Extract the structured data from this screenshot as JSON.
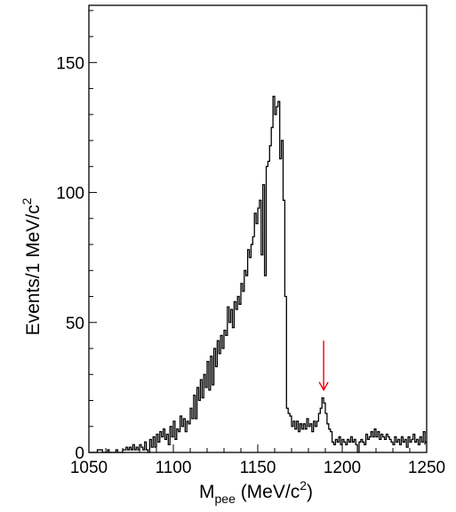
{
  "chart_data": {
    "type": "histogram",
    "bin_width": 1,
    "xlim": [
      1050,
      1250
    ],
    "ylim": [
      0,
      172
    ],
    "grid": false,
    "legend": "none",
    "x_ticks": [
      "1050",
      "1100",
      "1150",
      "1200",
      "1250"
    ],
    "y_ticks": [
      "0",
      "50",
      "100",
      "150"
    ],
    "xlabel": {
      "main": "M",
      "sub": "pee",
      "unit": " (MeV/c",
      "sup": "2",
      "close": ")"
    },
    "ylabel": {
      "main": "Events/1 MeV/c",
      "sup": "2"
    },
    "histogram_color": "#000000",
    "arrow": {
      "x": 1189,
      "y_top": 43,
      "y_tip": 24,
      "color": "#e8000b"
    },
    "bins": [
      [
        1055,
        1
      ],
      [
        1058,
        0
      ],
      [
        1061,
        1
      ],
      [
        1062,
        0
      ],
      [
        1066,
        1
      ],
      [
        1067,
        0
      ],
      [
        1070,
        1
      ],
      [
        1072,
        2
      ],
      [
        1073,
        1
      ],
      [
        1074,
        2
      ],
      [
        1075,
        1
      ],
      [
        1076,
        3
      ],
      [
        1077,
        1
      ],
      [
        1078,
        2
      ],
      [
        1079,
        1
      ],
      [
        1080,
        3
      ],
      [
        1081,
        2
      ],
      [
        1082,
        1
      ],
      [
        1083,
        4
      ],
      [
        1084,
        1
      ],
      [
        1085,
        0
      ],
      [
        1086,
        5
      ],
      [
        1087,
        2
      ],
      [
        1088,
        6
      ],
      [
        1089,
        2
      ],
      [
        1090,
        7
      ],
      [
        1091,
        4
      ],
      [
        1092,
        8
      ],
      [
        1093,
        6
      ],
      [
        1094,
        9
      ],
      [
        1095,
        5
      ],
      [
        1096,
        7
      ],
      [
        1097,
        3
      ],
      [
        1098,
        10
      ],
      [
        1099,
        6
      ],
      [
        1100,
        12
      ],
      [
        1101,
        5
      ],
      [
        1102,
        9
      ],
      [
        1103,
        8
      ],
      [
        1104,
        14
      ],
      [
        1105,
        10
      ],
      [
        1106,
        13
      ],
      [
        1107,
        8
      ],
      [
        1108,
        12
      ],
      [
        1109,
        11
      ],
      [
        1110,
        17
      ],
      [
        1111,
        13
      ],
      [
        1112,
        22
      ],
      [
        1113,
        13
      ],
      [
        1114,
        25
      ],
      [
        1115,
        20
      ],
      [
        1116,
        28
      ],
      [
        1117,
        21
      ],
      [
        1118,
        30
      ],
      [
        1119,
        25
      ],
      [
        1120,
        35
      ],
      [
        1121,
        24
      ],
      [
        1122,
        37
      ],
      [
        1123,
        26
      ],
      [
        1124,
        40
      ],
      [
        1125,
        33
      ],
      [
        1126,
        43
      ],
      [
        1127,
        38
      ],
      [
        1128,
        45
      ],
      [
        1129,
        40
      ],
      [
        1130,
        47
      ],
      [
        1131,
        45
      ],
      [
        1132,
        56
      ],
      [
        1133,
        50
      ],
      [
        1134,
        55
      ],
      [
        1135,
        48
      ],
      [
        1136,
        58
      ],
      [
        1137,
        55
      ],
      [
        1138,
        60
      ],
      [
        1139,
        57
      ],
      [
        1140,
        65
      ],
      [
        1141,
        62
      ],
      [
        1142,
        70
      ],
      [
        1143,
        68
      ],
      [
        1144,
        78
      ],
      [
        1145,
        75
      ],
      [
        1146,
        80
      ],
      [
        1147,
        83
      ],
      [
        1148,
        92
      ],
      [
        1149,
        88
      ],
      [
        1150,
        94
      ],
      [
        1151,
        97
      ],
      [
        1152,
        76
      ],
      [
        1153,
        103
      ],
      [
        1154,
        68
      ],
      [
        1155,
        110
      ],
      [
        1156,
        112
      ],
      [
        1157,
        118
      ],
      [
        1158,
        125
      ],
      [
        1159,
        137
      ],
      [
        1160,
        130
      ],
      [
        1161,
        133
      ],
      [
        1162,
        135
      ],
      [
        1163,
        113
      ],
      [
        1164,
        120
      ],
      [
        1165,
        97
      ],
      [
        1166,
        60
      ],
      [
        1167,
        17
      ],
      [
        1168,
        15
      ],
      [
        1169,
        14
      ],
      [
        1170,
        10
      ],
      [
        1171,
        12
      ],
      [
        1172,
        9
      ],
      [
        1173,
        12
      ],
      [
        1174,
        8
      ],
      [
        1175,
        11
      ],
      [
        1176,
        9
      ],
      [
        1177,
        11
      ],
      [
        1178,
        9
      ],
      [
        1179,
        13
      ],
      [
        1180,
        10
      ],
      [
        1181,
        11
      ],
      [
        1182,
        8
      ],
      [
        1183,
        12
      ],
      [
        1184,
        10
      ],
      [
        1185,
        12
      ],
      [
        1186,
        15
      ],
      [
        1187,
        17
      ],
      [
        1188,
        21
      ],
      [
        1189,
        19
      ],
      [
        1190,
        15
      ],
      [
        1191,
        11
      ],
      [
        1192,
        9
      ],
      [
        1193,
        8
      ],
      [
        1194,
        4
      ],
      [
        1195,
        3
      ],
      [
        1196,
        5
      ],
      [
        1197,
        4
      ],
      [
        1198,
        6
      ],
      [
        1199,
        3
      ],
      [
        1200,
        5
      ],
      [
        1201,
        4
      ],
      [
        1202,
        3
      ],
      [
        1203,
        5
      ],
      [
        1204,
        4
      ],
      [
        1205,
        6
      ],
      [
        1206,
        4
      ],
      [
        1207,
        5
      ],
      [
        1208,
        3
      ],
      [
        1209,
        0
      ],
      [
        1210,
        4
      ],
      [
        1211,
        5
      ],
      [
        1212,
        4
      ],
      [
        1213,
        3
      ],
      [
        1214,
        7
      ],
      [
        1215,
        5
      ],
      [
        1216,
        6
      ],
      [
        1217,
        8
      ],
      [
        1218,
        6
      ],
      [
        1219,
        9
      ],
      [
        1220,
        6
      ],
      [
        1221,
        8
      ],
      [
        1222,
        5
      ],
      [
        1223,
        7
      ],
      [
        1224,
        6
      ],
      [
        1225,
        5
      ],
      [
        1226,
        7
      ],
      [
        1227,
        6
      ],
      [
        1228,
        5
      ],
      [
        1229,
        4
      ],
      [
        1230,
        3
      ],
      [
        1231,
        6
      ],
      [
        1232,
        4
      ],
      [
        1233,
        5
      ],
      [
        1234,
        3
      ],
      [
        1235,
        6
      ],
      [
        1236,
        4
      ],
      [
        1237,
        5
      ],
      [
        1238,
        2
      ],
      [
        1239,
        6
      ],
      [
        1240,
        4
      ],
      [
        1241,
        5
      ],
      [
        1242,
        7
      ],
      [
        1243,
        4
      ],
      [
        1244,
        5
      ],
      [
        1245,
        3
      ],
      [
        1246,
        6
      ],
      [
        1247,
        4
      ],
      [
        1248,
        8
      ],
      [
        1249,
        3
      ],
      [
        1250,
        4
      ]
    ]
  }
}
